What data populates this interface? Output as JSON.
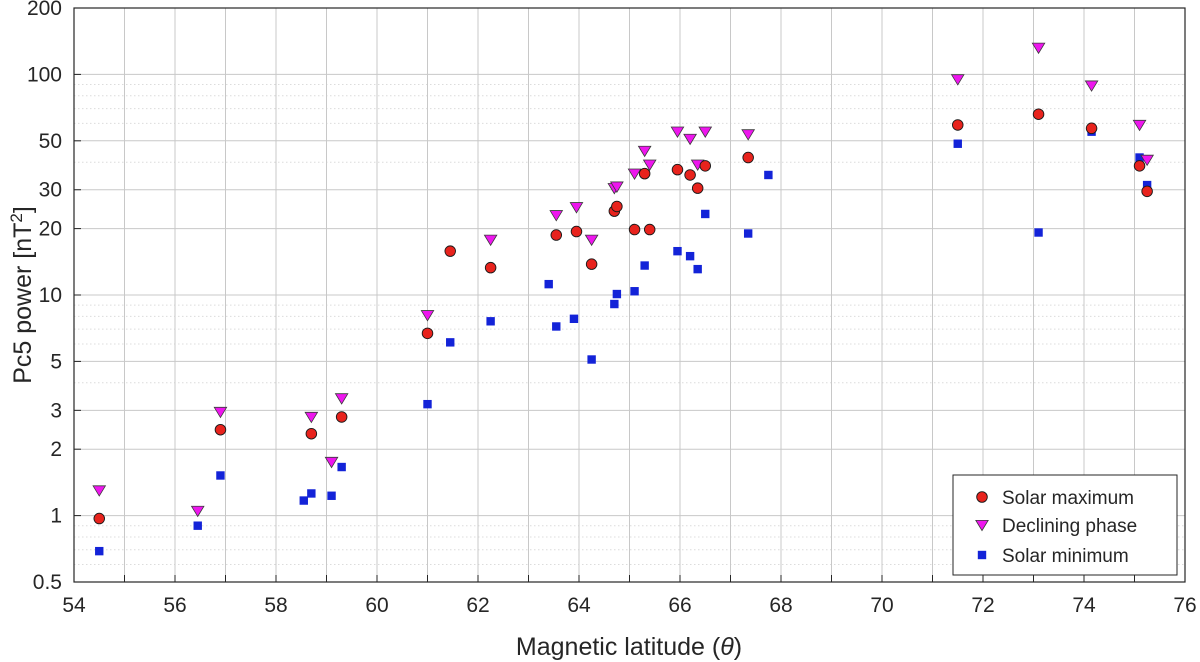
{
  "chart_data": {
    "type": "scatter",
    "xlabel": "Magnetic latitude",
    "xlabel_symbol": "θ",
    "ylabel": "Pc5 power [nT",
    "ylabel_sup": "2",
    "ylabel_close": "]",
    "xlim": [
      54,
      76
    ],
    "ylim": [
      0.5,
      200
    ],
    "yscale": "log",
    "grid": true,
    "minor_grid_y": true,
    "legend_position": "bottom-right",
    "x_ticks": [
      54,
      56,
      58,
      60,
      62,
      64,
      66,
      68,
      70,
      72,
      74,
      76
    ],
    "y_ticks": [
      0.5,
      1,
      2,
      3,
      5,
      10,
      20,
      30,
      50,
      100,
      200
    ],
    "series": [
      {
        "name": "Solar maximum",
        "marker": "circle",
        "color": "#e8231d",
        "points": [
          [
            54.5,
            0.97
          ],
          [
            56.9,
            2.45
          ],
          [
            58.7,
            2.35
          ],
          [
            59.3,
            2.8
          ],
          [
            61.0,
            6.7
          ],
          [
            61.45,
            15.8
          ],
          [
            62.25,
            13.3
          ],
          [
            63.55,
            18.7
          ],
          [
            63.95,
            19.4
          ],
          [
            64.25,
            13.8
          ],
          [
            64.7,
            24.0
          ],
          [
            64.75,
            25.2
          ],
          [
            65.1,
            19.8
          ],
          [
            65.3,
            35.5
          ],
          [
            65.4,
            19.8
          ],
          [
            65.95,
            37.0
          ],
          [
            66.2,
            35.0
          ],
          [
            66.35,
            30.5
          ],
          [
            66.5,
            38.5
          ],
          [
            67.35,
            42.0
          ],
          [
            71.5,
            59.0
          ],
          [
            73.1,
            66.0
          ],
          [
            74.15,
            57.0
          ],
          [
            75.1,
            38.5
          ],
          [
            75.25,
            29.5
          ]
        ]
      },
      {
        "name": "Declining phase",
        "marker": "triangle-down",
        "color": "#ee16ee",
        "points": [
          [
            54.5,
            1.3
          ],
          [
            56.45,
            1.05
          ],
          [
            56.9,
            2.95
          ],
          [
            58.7,
            2.8
          ],
          [
            59.1,
            1.75
          ],
          [
            59.3,
            3.4
          ],
          [
            61.0,
            8.1
          ],
          [
            62.25,
            17.8
          ],
          [
            63.55,
            23.0
          ],
          [
            63.95,
            25.0
          ],
          [
            64.25,
            17.8
          ],
          [
            64.7,
            30.5
          ],
          [
            64.75,
            31.0
          ],
          [
            65.1,
            35.5
          ],
          [
            65.3,
            45.0
          ],
          [
            65.4,
            39.0
          ],
          [
            65.95,
            55.0
          ],
          [
            66.2,
            51.0
          ],
          [
            66.35,
            39.0
          ],
          [
            66.5,
            55.0
          ],
          [
            67.35,
            53.5
          ],
          [
            71.5,
            95.0
          ],
          [
            73.1,
            132.0
          ],
          [
            74.15,
            89.0
          ],
          [
            75.1,
            59.0
          ],
          [
            75.25,
            41.0
          ]
        ]
      },
      {
        "name": "Solar minimum",
        "marker": "square",
        "color": "#1323d8",
        "points": [
          [
            54.5,
            0.69
          ],
          [
            56.45,
            0.9
          ],
          [
            56.9,
            1.52
          ],
          [
            58.55,
            1.17
          ],
          [
            58.7,
            1.26
          ],
          [
            59.1,
            1.23
          ],
          [
            59.3,
            1.66
          ],
          [
            61.0,
            3.2
          ],
          [
            61.45,
            6.1
          ],
          [
            62.25,
            7.6
          ],
          [
            63.4,
            11.2
          ],
          [
            63.55,
            7.2
          ],
          [
            63.9,
            7.8
          ],
          [
            64.25,
            5.1
          ],
          [
            64.7,
            9.1
          ],
          [
            64.75,
            10.1
          ],
          [
            65.1,
            10.4
          ],
          [
            65.3,
            13.6
          ],
          [
            65.95,
            15.8
          ],
          [
            66.2,
            15.0
          ],
          [
            66.35,
            13.1
          ],
          [
            66.5,
            23.3
          ],
          [
            67.35,
            19.0
          ],
          [
            67.75,
            35.0
          ],
          [
            71.5,
            48.5
          ],
          [
            73.1,
            19.2
          ],
          [
            74.15,
            55.0
          ],
          [
            75.1,
            42.0
          ],
          [
            75.25,
            31.5
          ]
        ]
      }
    ]
  }
}
